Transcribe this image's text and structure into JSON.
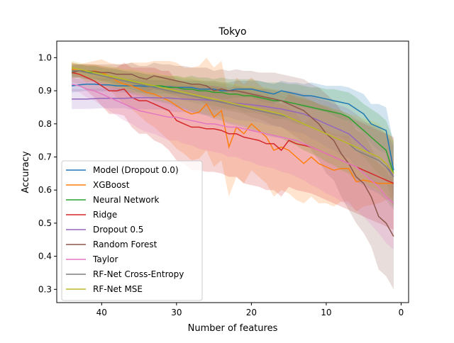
{
  "chart_data": {
    "type": "line",
    "title": "Tokyo",
    "xlabel": "Number of features",
    "ylabel": "Accuracy",
    "xlim": [
      46,
      -1
    ],
    "ylim": [
      0.26,
      1.05
    ],
    "xticks": [
      40,
      30,
      20,
      10,
      0
    ],
    "yticks": [
      0.3,
      0.4,
      0.5,
      0.6,
      0.7,
      0.8,
      0.9,
      1.0
    ],
    "legend_position": "lower-left",
    "shaded_band": "variability band around each series",
    "x": [
      44,
      43,
      42,
      41,
      40,
      39,
      38,
      37,
      36,
      35,
      34,
      33,
      32,
      31,
      30,
      29,
      28,
      27,
      26,
      25,
      24,
      23,
      22,
      21,
      20,
      19,
      18,
      17,
      16,
      15,
      14,
      13,
      12,
      11,
      10,
      9,
      8,
      7,
      6,
      5,
      4,
      3,
      2,
      1
    ],
    "series": [
      {
        "name": "Model (Dropout 0.0)",
        "color": "#1f77b4",
        "values": [
          0.915,
          0.918,
          0.92,
          0.92,
          0.918,
          0.918,
          0.915,
          0.915,
          0.915,
          0.915,
          0.913,
          0.912,
          0.912,
          0.912,
          0.91,
          0.91,
          0.91,
          0.905,
          0.905,
          0.905,
          0.9,
          0.9,
          0.905,
          0.905,
          0.905,
          0.9,
          0.895,
          0.89,
          0.9,
          0.895,
          0.89,
          0.885,
          0.885,
          0.88,
          0.875,
          0.87,
          0.865,
          0.86,
          0.845,
          0.83,
          0.8,
          0.79,
          0.78,
          0.66
        ],
        "spread": [
          0.02,
          0.02,
          0.02,
          0.02,
          0.02,
          0.02,
          0.02,
          0.02,
          0.02,
          0.02,
          0.02,
          0.02,
          0.02,
          0.02,
          0.02,
          0.02,
          0.02,
          0.025,
          0.025,
          0.025,
          0.025,
          0.025,
          0.025,
          0.025,
          0.025,
          0.03,
          0.03,
          0.03,
          0.03,
          0.03,
          0.035,
          0.035,
          0.04,
          0.04,
          0.04,
          0.045,
          0.05,
          0.05,
          0.055,
          0.06,
          0.06,
          0.07,
          0.07,
          0.08
        ]
      },
      {
        "name": "XGBoost",
        "color": "#ff7f0e",
        "values": [
          0.965,
          0.96,
          0.955,
          0.96,
          0.955,
          0.945,
          0.93,
          0.92,
          0.915,
          0.905,
          0.895,
          0.89,
          0.88,
          0.87,
          0.855,
          0.84,
          0.83,
          0.835,
          0.86,
          0.82,
          0.84,
          0.73,
          0.79,
          0.77,
          0.8,
          0.78,
          0.76,
          0.72,
          0.73,
          0.72,
          0.7,
          0.68,
          0.7,
          0.68,
          0.67,
          0.66,
          0.665,
          0.665,
          0.625,
          0.63,
          0.625,
          0.62,
          0.62,
          0.62
        ],
        "spread": [
          0.02,
          0.02,
          0.03,
          0.03,
          0.04,
          0.04,
          0.05,
          0.06,
          0.07,
          0.08,
          0.09,
          0.1,
          0.11,
          0.12,
          0.13,
          0.13,
          0.14,
          0.14,
          0.14,
          0.15,
          0.15,
          0.15,
          0.15,
          0.15,
          0.14,
          0.14,
          0.14,
          0.14,
          0.13,
          0.13,
          0.13,
          0.12,
          0.12,
          0.12,
          0.11,
          0.11,
          0.1,
          0.1,
          0.09,
          0.08,
          0.07,
          0.06,
          0.05,
          0.04
        ]
      },
      {
        "name": "Neural Network",
        "color": "#2ca02c",
        "values": [
          0.96,
          0.96,
          0.955,
          0.955,
          0.95,
          0.945,
          0.94,
          0.935,
          0.93,
          0.925,
          0.92,
          0.915,
          0.915,
          0.91,
          0.91,
          0.905,
          0.905,
          0.9,
          0.9,
          0.895,
          0.895,
          0.89,
          0.89,
          0.885,
          0.885,
          0.88,
          0.875,
          0.87,
          0.87,
          0.865,
          0.86,
          0.855,
          0.85,
          0.845,
          0.84,
          0.835,
          0.83,
          0.82,
          0.8,
          0.78,
          0.76,
          0.74,
          0.72,
          0.65
        ],
        "spread": [
          0.02,
          0.02,
          0.02,
          0.02,
          0.02,
          0.02,
          0.025,
          0.025,
          0.025,
          0.03,
          0.03,
          0.03,
          0.03,
          0.035,
          0.035,
          0.035,
          0.04,
          0.04,
          0.04,
          0.04,
          0.045,
          0.045,
          0.045,
          0.05,
          0.05,
          0.05,
          0.05,
          0.055,
          0.055,
          0.055,
          0.06,
          0.06,
          0.06,
          0.065,
          0.065,
          0.07,
          0.07,
          0.075,
          0.08,
          0.08,
          0.085,
          0.09,
          0.09,
          0.1
        ]
      },
      {
        "name": "Ridge",
        "color": "#d62728",
        "values": [
          0.955,
          0.95,
          0.94,
          0.93,
          0.915,
          0.9,
          0.9,
          0.905,
          0.88,
          0.87,
          0.87,
          0.86,
          0.85,
          0.84,
          0.81,
          0.8,
          0.79,
          0.79,
          0.785,
          0.785,
          0.78,
          0.77,
          0.77,
          0.76,
          0.755,
          0.75,
          0.74,
          0.74,
          0.72,
          0.75,
          0.74,
          0.735,
          0.73,
          0.72,
          0.71,
          0.7,
          0.69,
          0.68,
          0.67,
          0.66,
          0.65,
          0.64,
          0.63,
          0.62
        ],
        "spread": [
          0.03,
          0.03,
          0.04,
          0.05,
          0.06,
          0.07,
          0.07,
          0.08,
          0.09,
          0.1,
          0.1,
          0.11,
          0.11,
          0.12,
          0.12,
          0.12,
          0.13,
          0.13,
          0.13,
          0.13,
          0.13,
          0.13,
          0.13,
          0.14,
          0.14,
          0.14,
          0.14,
          0.14,
          0.14,
          0.14,
          0.14,
          0.14,
          0.14,
          0.14,
          0.14,
          0.14,
          0.14,
          0.14,
          0.14,
          0.14,
          0.14,
          0.14,
          0.14,
          0.14
        ]
      },
      {
        "name": "Dropout 0.5",
        "color": "#9467bd",
        "values": [
          0.875,
          0.875,
          0.875,
          0.876,
          0.877,
          0.877,
          0.877,
          0.877,
          0.878,
          0.879,
          0.879,
          0.879,
          0.878,
          0.878,
          0.876,
          0.875,
          0.874,
          0.873,
          0.872,
          0.87,
          0.868,
          0.865,
          0.862,
          0.86,
          0.858,
          0.855,
          0.852,
          0.848,
          0.845,
          0.84,
          0.835,
          0.83,
          0.82,
          0.81,
          0.8,
          0.79,
          0.78,
          0.77,
          0.75,
          0.73,
          0.71,
          0.7,
          0.68,
          0.64
        ],
        "spread": [
          0.03,
          0.03,
          0.03,
          0.03,
          0.03,
          0.03,
          0.03,
          0.03,
          0.035,
          0.035,
          0.035,
          0.035,
          0.035,
          0.04,
          0.04,
          0.04,
          0.04,
          0.04,
          0.045,
          0.045,
          0.045,
          0.045,
          0.05,
          0.05,
          0.05,
          0.05,
          0.055,
          0.055,
          0.055,
          0.06,
          0.06,
          0.06,
          0.065,
          0.065,
          0.07,
          0.07,
          0.075,
          0.075,
          0.08,
          0.08,
          0.085,
          0.085,
          0.09,
          0.09
        ]
      },
      {
        "name": "Random Forest",
        "color": "#8c564b",
        "values": [
          0.955,
          0.96,
          0.96,
          0.958,
          0.955,
          0.955,
          0.95,
          0.95,
          0.95,
          0.94,
          0.935,
          0.945,
          0.94,
          0.935,
          0.93,
          0.925,
          0.92,
          0.92,
          0.915,
          0.9,
          0.905,
          0.9,
          0.9,
          0.895,
          0.89,
          0.885,
          0.88,
          0.875,
          0.87,
          0.86,
          0.85,
          0.84,
          0.82,
          0.8,
          0.77,
          0.75,
          0.71,
          0.68,
          0.64,
          0.62,
          0.58,
          0.52,
          0.5,
          0.46
        ],
        "spread": [
          0.02,
          0.02,
          0.02,
          0.02,
          0.025,
          0.025,
          0.03,
          0.03,
          0.035,
          0.035,
          0.04,
          0.04,
          0.04,
          0.045,
          0.045,
          0.05,
          0.05,
          0.05,
          0.055,
          0.06,
          0.06,
          0.06,
          0.065,
          0.065,
          0.07,
          0.07,
          0.075,
          0.08,
          0.08,
          0.085,
          0.09,
          0.095,
          0.1,
          0.11,
          0.12,
          0.12,
          0.13,
          0.14,
          0.14,
          0.15,
          0.15,
          0.16,
          0.16,
          0.16
        ]
      },
      {
        "name": "Taylor",
        "color": "#e377c2",
        "values": [
          0.92,
          0.915,
          0.905,
          0.9,
          0.89,
          0.88,
          0.87,
          0.86,
          0.85,
          0.84,
          0.835,
          0.83,
          0.825,
          0.82,
          0.82,
          0.815,
          0.81,
          0.805,
          0.8,
          0.8,
          0.795,
          0.79,
          0.79,
          0.785,
          0.78,
          0.775,
          0.77,
          0.765,
          0.76,
          0.755,
          0.75,
          0.74,
          0.73,
          0.72,
          0.71,
          0.7,
          0.69,
          0.68,
          0.67,
          0.65,
          0.63,
          0.61,
          0.58,
          0.56
        ],
        "spread": [
          0.02,
          0.02,
          0.025,
          0.03,
          0.035,
          0.04,
          0.045,
          0.05,
          0.05,
          0.055,
          0.06,
          0.06,
          0.065,
          0.07,
          0.07,
          0.075,
          0.075,
          0.08,
          0.08,
          0.085,
          0.085,
          0.09,
          0.09,
          0.095,
          0.095,
          0.1,
          0.1,
          0.1,
          0.105,
          0.105,
          0.11,
          0.11,
          0.115,
          0.115,
          0.12,
          0.12,
          0.125,
          0.125,
          0.13,
          0.13,
          0.135,
          0.14,
          0.14,
          0.14
        ]
      },
      {
        "name": "RF-Net Cross-Entropy",
        "color": "#7f7f7f",
        "values": [
          0.96,
          0.96,
          0.955,
          0.95,
          0.945,
          0.94,
          0.935,
          0.93,
          0.925,
          0.92,
          0.915,
          0.91,
          0.905,
          0.9,
          0.895,
          0.89,
          0.885,
          0.88,
          0.875,
          0.87,
          0.865,
          0.86,
          0.855,
          0.85,
          0.845,
          0.84,
          0.835,
          0.83,
          0.825,
          0.82,
          0.81,
          0.8,
          0.79,
          0.78,
          0.77,
          0.76,
          0.75,
          0.74,
          0.72,
          0.71,
          0.7,
          0.69,
          0.67,
          0.64
        ],
        "spread": [
          0.02,
          0.02,
          0.02,
          0.025,
          0.025,
          0.03,
          0.03,
          0.03,
          0.035,
          0.035,
          0.035,
          0.04,
          0.04,
          0.04,
          0.045,
          0.045,
          0.05,
          0.05,
          0.05,
          0.055,
          0.055,
          0.06,
          0.06,
          0.06,
          0.065,
          0.065,
          0.07,
          0.07,
          0.07,
          0.075,
          0.075,
          0.08,
          0.08,
          0.08,
          0.085,
          0.085,
          0.09,
          0.09,
          0.095,
          0.095,
          0.1,
          0.1,
          0.1,
          0.1
        ]
      },
      {
        "name": "RF-Net MSE",
        "color": "#bcbd22",
        "values": [
          0.97,
          0.965,
          0.96,
          0.955,
          0.95,
          0.945,
          0.94,
          0.935,
          0.93,
          0.925,
          0.92,
          0.915,
          0.91,
          0.905,
          0.9,
          0.895,
          0.89,
          0.885,
          0.88,
          0.875,
          0.87,
          0.865,
          0.86,
          0.855,
          0.85,
          0.845,
          0.84,
          0.835,
          0.83,
          0.82,
          0.81,
          0.8,
          0.79,
          0.78,
          0.77,
          0.76,
          0.75,
          0.74,
          0.73,
          0.72,
          0.71,
          0.7,
          0.68,
          0.65
        ],
        "spread": [
          0.02,
          0.02,
          0.02,
          0.025,
          0.025,
          0.03,
          0.03,
          0.03,
          0.035,
          0.035,
          0.035,
          0.04,
          0.04,
          0.04,
          0.045,
          0.045,
          0.05,
          0.05,
          0.05,
          0.055,
          0.055,
          0.06,
          0.06,
          0.06,
          0.065,
          0.065,
          0.07,
          0.07,
          0.07,
          0.075,
          0.075,
          0.08,
          0.08,
          0.08,
          0.085,
          0.085,
          0.09,
          0.09,
          0.095,
          0.095,
          0.1,
          0.1,
          0.1,
          0.1
        ]
      }
    ]
  }
}
